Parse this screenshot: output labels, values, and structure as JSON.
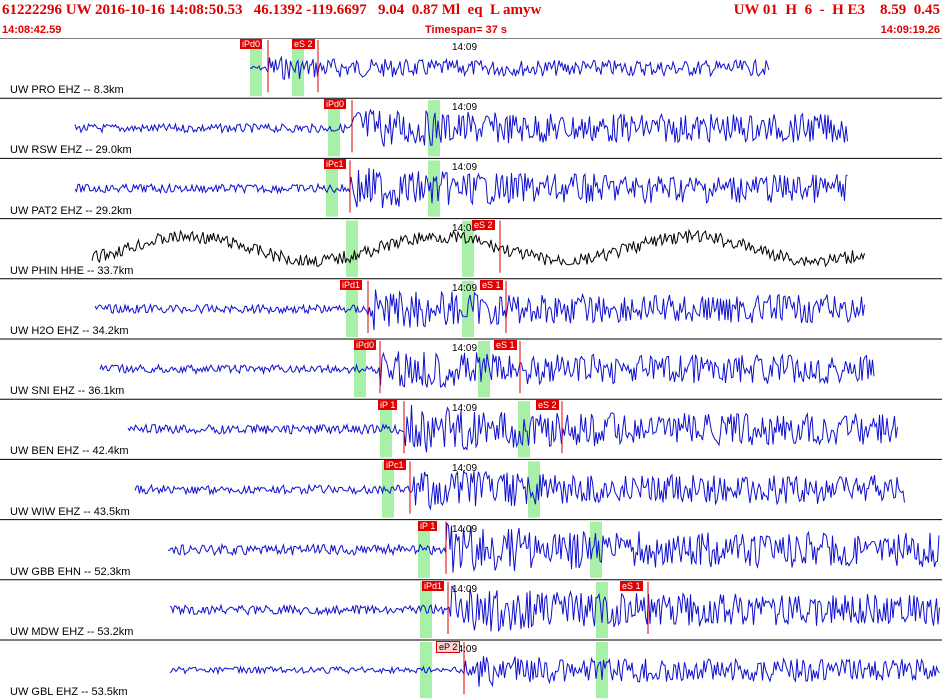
{
  "header": {
    "event_line": "61222296 UW 2016-10-16 14:08:50.53   46.1392 -119.6697   9.04  0.87 Ml  eq  L amyw",
    "right_info": "UW 01  H  6  -  H E3    8.59  0.45",
    "start_time": "14:08:42.59",
    "timespan": "Timespan=  37 s",
    "end_time": "14:09:19.26"
  },
  "traces": [
    {
      "label": "UW PRO EHZ -- 8.3km",
      "time": "14:09",
      "color": "#1010d0",
      "picks": [
        "iPd0",
        "eS 2"
      ]
    },
    {
      "label": "UW RSW EHZ -- 29.0km",
      "time": "14:09",
      "color": "#1010d0",
      "picks": [
        "iPd0"
      ]
    },
    {
      "label": "UW PAT2 EHZ -- 29.2km",
      "time": "14:09",
      "color": "#1010d0",
      "picks": [
        "iPc1"
      ]
    },
    {
      "label": "UW PHIN HHE -- 33.7km",
      "time": "14:09",
      "color": "#000000",
      "picks": [
        "eS 2"
      ]
    },
    {
      "label": "UW H2O EHZ -- 34.2km",
      "time": "14:09",
      "color": "#1010d0",
      "picks": [
        "iPd1",
        "eS 1"
      ]
    },
    {
      "label": "UW SNI EHZ -- 36.1km",
      "time": "14:09",
      "color": "#1010d0",
      "picks": [
        "iPd0",
        "eS 1"
      ]
    },
    {
      "label": "UW BEN EHZ -- 42.4km",
      "time": "14:09",
      "color": "#1010d0",
      "picks": [
        "iP 1",
        "eS 2"
      ]
    },
    {
      "label": "UW WIW EHZ -- 43.5km",
      "time": "14:09",
      "color": "#1010d0",
      "picks": [
        "iPc1"
      ]
    },
    {
      "label": "UW GBB EHN -- 52.3km",
      "time": "14:09",
      "color": "#1010d0",
      "picks": [
        "iP 1"
      ]
    },
    {
      "label": "UW MDW EHZ -- 53.2km",
      "time": "14:09",
      "color": "#1010d0",
      "picks": [
        "iPd1",
        "eS 1"
      ]
    },
    {
      "label": "UW GBL EHZ -- 53.5km",
      "time": "14:09",
      "color": "#1010d0",
      "picks": [
        "eP 2"
      ]
    }
  ]
}
